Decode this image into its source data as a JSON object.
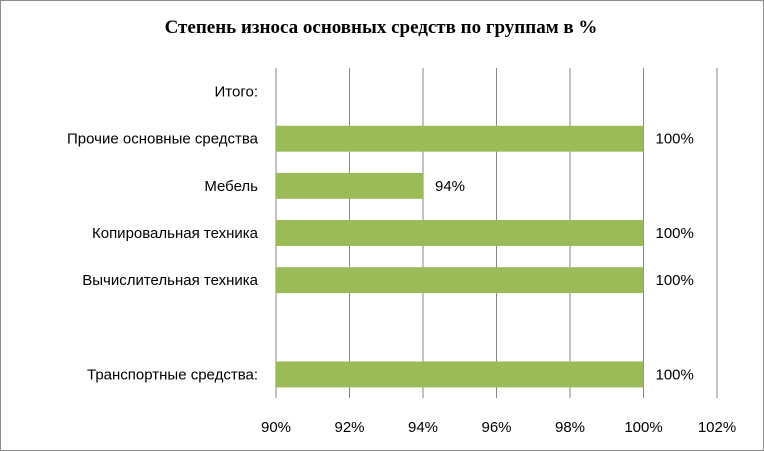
{
  "chart_data": {
    "type": "bar",
    "orientation": "horizontal",
    "title": "Степень износа основных средств по группам в %",
    "categories": [
      "Итого:",
      "Прочие основные средства",
      "Мебель",
      "Копировальная техника",
      "Вычислительная техника",
      "",
      "Транспортные средства:"
    ],
    "values": [
      null,
      100,
      94,
      100,
      100,
      null,
      100
    ],
    "value_labels": [
      "",
      "100%",
      "94%",
      "100%",
      "100%",
      "",
      "100%"
    ],
    "xlim": [
      90,
      102
    ],
    "x_ticks": [
      90,
      92,
      94,
      96,
      98,
      100,
      102
    ],
    "x_tick_labels": [
      "90%",
      "92%",
      "94%",
      "96%",
      "98%",
      "100%",
      "102%"
    ],
    "grid": "vertical",
    "legend": "none",
    "colors": {
      "bar": "#9bbb59",
      "grid": "#868686",
      "frame": "#8c8c8c"
    }
  }
}
